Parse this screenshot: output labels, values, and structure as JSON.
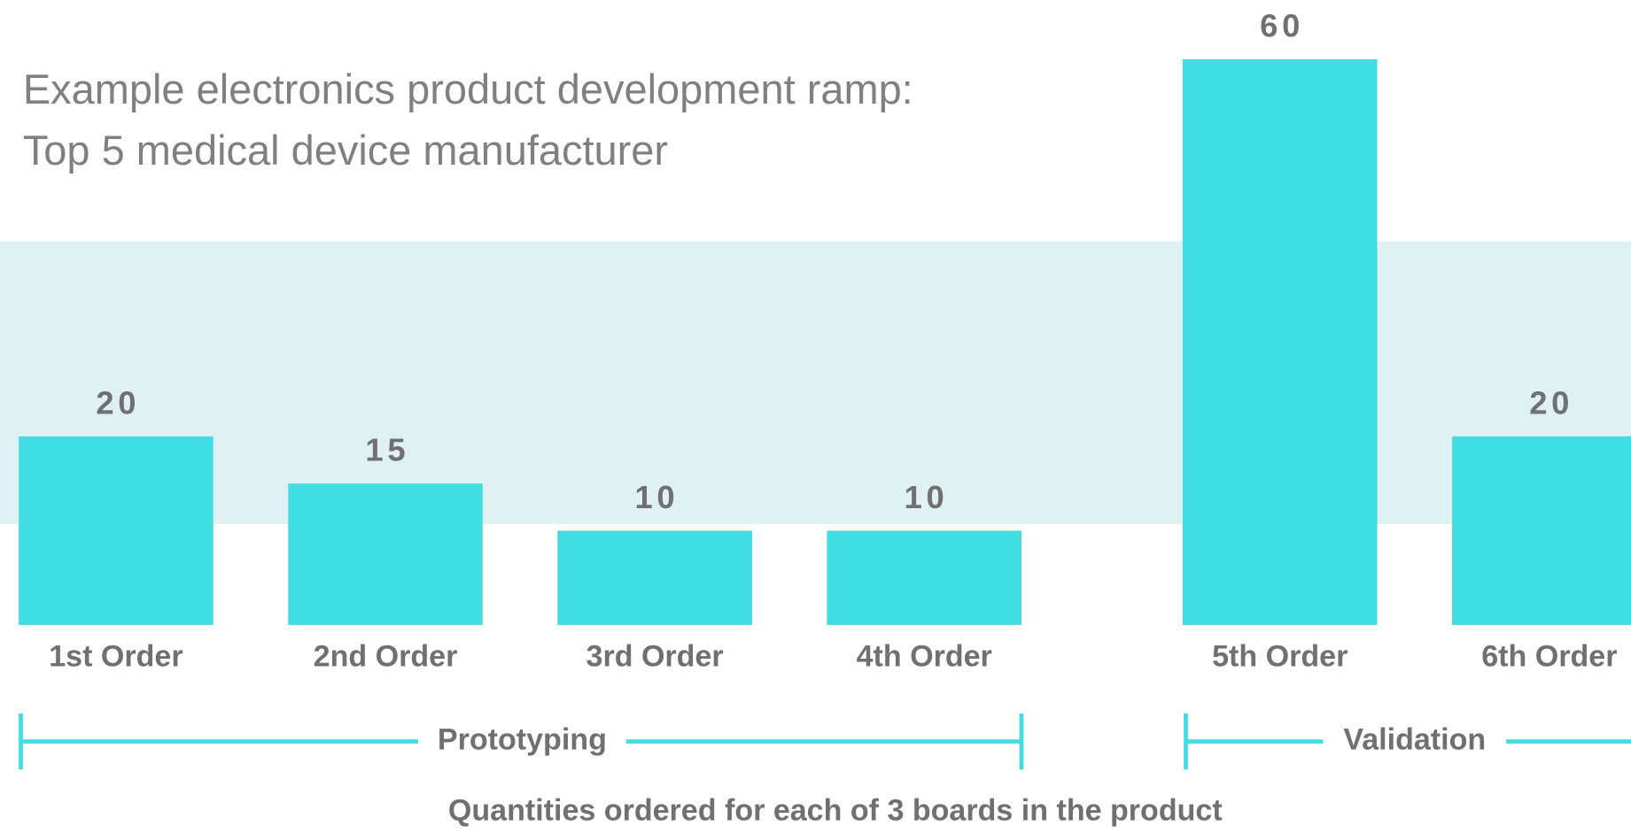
{
  "chart_data": {
    "type": "bar",
    "title": [
      "Example electronics product development ramp:",
      "Top 5 medical device manufacturer"
    ],
    "categories": [
      "1st Order",
      "2nd Order",
      "3rd Order",
      "4th Order",
      "5th Order",
      "6th Order"
    ],
    "values": [
      20,
      15,
      10,
      10,
      60,
      20
    ],
    "color": "#40dde2",
    "groups": [
      "Prototyping",
      "Validation"
    ],
    "note": "Quantities ordered for each of 3 boards in the product"
  }
}
